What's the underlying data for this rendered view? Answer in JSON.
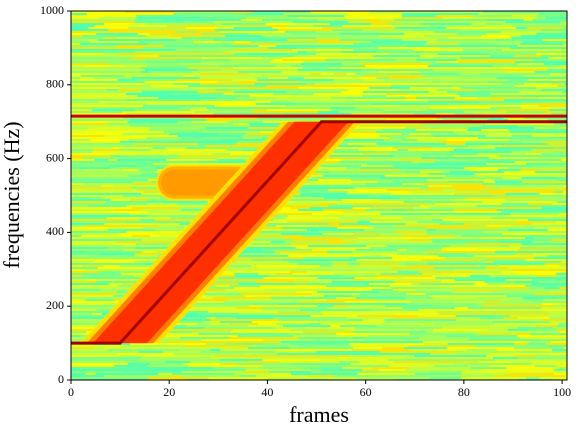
{
  "chart_data": {
    "type": "spectrogram",
    "xlabel": "frames",
    "ylabel": "frequencies (Hz)",
    "xlim": [
      0,
      101
    ],
    "ylim": [
      0,
      1000
    ],
    "xticks": [
      0,
      20,
      40,
      60,
      80,
      100
    ],
    "yticks": [
      0,
      200,
      400,
      600,
      800,
      1000
    ],
    "series": [
      {
        "color": "#cc0000",
        "x": [
          0,
          101
        ],
        "values": [
          715,
          715
        ]
      },
      {
        "color": "#a00000",
        "x": [
          0,
          10,
          51,
          101
        ],
        "values": [
          100,
          100,
          700,
          700
        ]
      },
      {
        "color": "#ff9a00",
        "x": [
          21,
          34
        ],
        "values": [
          535,
          535
        ]
      }
    ]
  }
}
